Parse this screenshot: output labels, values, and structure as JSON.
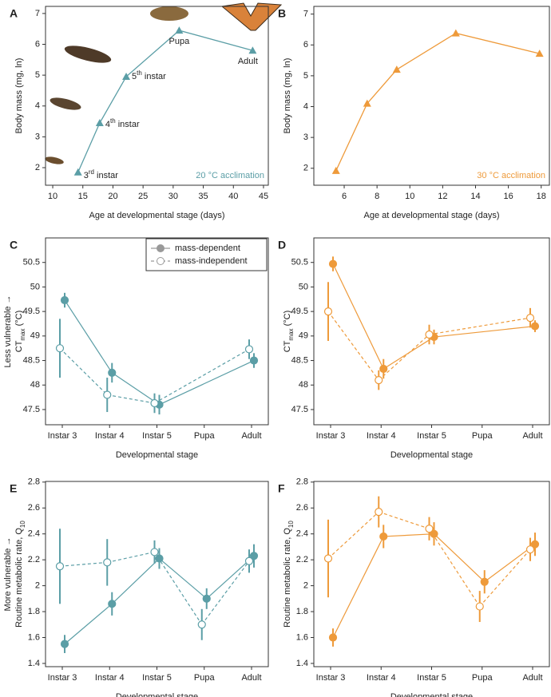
{
  "chart_data": [
    {
      "type": "line",
      "panel_label": "A",
      "xlabel": "Age at developmental stage (days)",
      "ylabel": [
        "Body mass (mg, ln)"
      ],
      "annotation": "20 °C acclimation",
      "color": "#5b9ea6",
      "marker": "triangle",
      "x": [
        14.2,
        17.8,
        22.2,
        31,
        43.2
      ],
      "values": [
        1.85,
        3.45,
        4.95,
        6.45,
        5.8
      ],
      "point_labels": [
        [
          "3",
          "rd",
          " instar"
        ],
        [
          "4",
          "th",
          " instar"
        ],
        [
          "5",
          "th",
          " instar"
        ],
        [
          "Pupa"
        ],
        [
          "Adult"
        ]
      ],
      "point_label_script": "super",
      "xlim": [
        8.8,
        45.8
      ],
      "xticks": [
        10,
        15,
        20,
        25,
        30,
        35,
        40,
        45
      ],
      "ylim": [
        1.43,
        7.23
      ],
      "yticks": [
        2,
        3,
        4,
        5,
        6,
        7
      ]
    },
    {
      "type": "line",
      "panel_label": "B",
      "xlabel": "Age at developmental stage (days)",
      "ylabel": [
        "Body mass (mg, ln)"
      ],
      "annotation": "30 °C acclimation",
      "color": "#ee9a3a",
      "marker": "triangle",
      "x": [
        5.5,
        7.4,
        9.2,
        12.8,
        17.9
      ],
      "values": [
        1.92,
        4.1,
        5.2,
        6.38,
        5.72
      ],
      "xlim": [
        4.15,
        18.5
      ],
      "xticks": [
        6,
        8,
        10,
        12,
        14,
        16,
        18
      ],
      "ylim": [
        1.45,
        7.25
      ],
      "yticks": [
        2,
        3,
        4,
        5,
        6,
        7
      ]
    },
    {
      "type": "errorbar",
      "panel_label": "C",
      "side_label": "Less vulnerable →",
      "xlabel": "Developmental stage",
      "ylabel": [
        "CT",
        "max",
        " (°C)"
      ],
      "ylabel_script": "sub",
      "categories": [
        "Instar 3",
        "Instar 4",
        "Instar 5",
        "Pupa",
        "Adult"
      ],
      "ylim": [
        47.19,
        51.0
      ],
      "yticks": [
        47.5,
        48.0,
        48.5,
        49.0,
        49.5,
        50.0,
        50.5
      ],
      "legend": "upper right",
      "legend_color": "#999999",
      "series": [
        {
          "name": "mass-dependent",
          "color": "#5b9ea6",
          "filled": true,
          "dashed": false,
          "values": [
            49.73,
            48.25,
            47.6,
            null,
            48.5
          ],
          "errors": [
            0.15,
            0.2,
            0.2,
            null,
            0.15
          ]
        },
        {
          "name": "mass-independent",
          "color": "#5b9ea6",
          "filled": false,
          "dashed": true,
          "values": [
            48.75,
            47.8,
            47.63,
            null,
            48.73
          ],
          "errors": [
            0.6,
            0.35,
            0.2,
            null,
            0.2
          ]
        }
      ]
    },
    {
      "type": "errorbar",
      "panel_label": "D",
      "xlabel": "Developmental stage",
      "ylabel": [
        "CT",
        "max",
        " (°C)"
      ],
      "ylabel_script": "sub",
      "categories": [
        "Instar 3",
        "Instar 4",
        "Instar 5",
        "Pupa",
        "Adult"
      ],
      "ylim": [
        47.19,
        51.0
      ],
      "yticks": [
        47.5,
        48.0,
        48.5,
        49.0,
        49.5,
        50.0,
        50.5
      ],
      "series": [
        {
          "color": "#ee9a3a",
          "filled": true,
          "dashed": false,
          "values": [
            50.47,
            48.33,
            48.98,
            null,
            49.2
          ],
          "errors": [
            0.15,
            0.2,
            0.15,
            null,
            0.12
          ]
        },
        {
          "color": "#ee9a3a",
          "filled": false,
          "dashed": true,
          "values": [
            49.5,
            48.1,
            49.03,
            null,
            49.37
          ],
          "errors": [
            0.6,
            0.2,
            0.2,
            null,
            0.2
          ]
        }
      ]
    },
    {
      "type": "errorbar",
      "panel_label": "E",
      "side_label": "More vulnerable →",
      "xlabel": "Developmental stage",
      "ylabel": [
        "Routine metabolic rate,  Q",
        "10"
      ],
      "ylabel_script": "sub",
      "categories": [
        "Instar 3",
        "Instar 4",
        "Instar 5",
        "Pupa",
        "Adult"
      ],
      "ylim": [
        1.375,
        2.805
      ],
      "yticks": [
        1.4,
        1.6,
        1.8,
        2.0,
        2.2,
        2.4,
        2.6,
        2.8
      ],
      "series": [
        {
          "color": "#5b9ea6",
          "filled": true,
          "dashed": false,
          "values": [
            1.55,
            1.86,
            2.21,
            1.9,
            2.23
          ],
          "errors": [
            0.07,
            0.09,
            0.08,
            0.08,
            0.09
          ]
        },
        {
          "color": "#5b9ea6",
          "filled": false,
          "dashed": true,
          "values": [
            2.15,
            2.18,
            2.26,
            1.7,
            2.19
          ],
          "errors": [
            0.29,
            0.18,
            0.09,
            0.12,
            0.09
          ]
        }
      ]
    },
    {
      "type": "errorbar",
      "panel_label": "F",
      "xlabel": "Developmental stage",
      "ylabel": [
        "Routine metabolic rate,  Q",
        "10"
      ],
      "ylabel_script": "sub",
      "categories": [
        "Instar 3",
        "Instar 4",
        "Instar 5",
        "Pupa",
        "Adult"
      ],
      "ylim": [
        1.375,
        2.805
      ],
      "yticks": [
        1.4,
        1.6,
        1.8,
        2.0,
        2.2,
        2.4,
        2.6,
        2.8
      ],
      "series": [
        {
          "color": "#ee9a3a",
          "filled": true,
          "dashed": false,
          "values": [
            1.6,
            2.38,
            2.4,
            2.03,
            2.32
          ],
          "errors": [
            0.07,
            0.09,
            0.09,
            0.09,
            0.09
          ]
        },
        {
          "color": "#ee9a3a",
          "filled": false,
          "dashed": true,
          "values": [
            2.21,
            2.57,
            2.44,
            1.84,
            2.28
          ],
          "errors": [
            0.3,
            0.12,
            0.09,
            0.12,
            0.09
          ]
        }
      ]
    }
  ]
}
